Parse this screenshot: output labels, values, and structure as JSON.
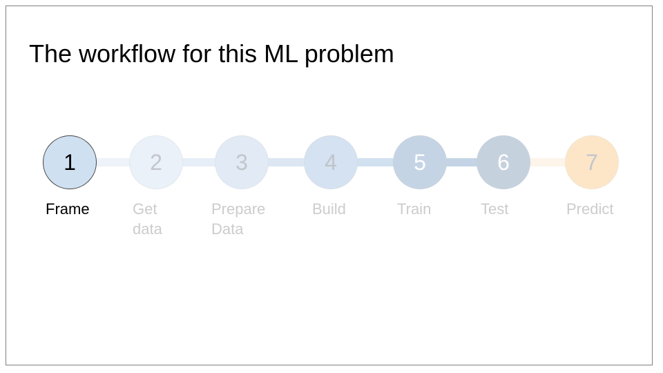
{
  "title": "The workflow for this ML problem",
  "steps": [
    {
      "number": "1",
      "label": "Frame",
      "fill": "#cfe0f1",
      "border": "#444444",
      "text_color": "#000000",
      "label_color": "#000000"
    },
    {
      "number": "2",
      "label": "Get\ndata",
      "fill": "#eaf1f9",
      "border": "#e2e7ee",
      "text_color": "#c3c6cb",
      "label_color": "#cccccc"
    },
    {
      "number": "3",
      "label": "Prepare\nData",
      "fill": "#e1eaf5",
      "border": "#dde3eb",
      "text_color": "#c3c6cb",
      "label_color": "#cccccc"
    },
    {
      "number": "4",
      "label": "Build",
      "fill": "#d4e2f1",
      "border": "#d7dde5",
      "text_color": "#c0c4ca",
      "label_color": "#cccccc"
    },
    {
      "number": "5",
      "label": "Train",
      "fill": "#c5d4e5",
      "border": "#c8d1dc",
      "text_color": "#ffffff",
      "label_color": "#cccccc"
    },
    {
      "number": "6",
      "label": "Test",
      "fill": "#c6d1de",
      "border": "#c8d1dc",
      "text_color": "#ffffff",
      "label_color": "#cccccc"
    },
    {
      "number": "7",
      "label": "Predict",
      "fill": "#fde6c7",
      "border": "#f1e4d2",
      "text_color": "#c3c6cb",
      "label_color": "#cccccc"
    }
  ],
  "connectors": [
    {
      "color": "#eef3f9"
    },
    {
      "color": "#e6eef7"
    },
    {
      "color": "#dce7f3"
    },
    {
      "color": "#d2e1f0"
    },
    {
      "color": "#c4d4e6"
    },
    {
      "color": "#fdf4ea"
    }
  ]
}
